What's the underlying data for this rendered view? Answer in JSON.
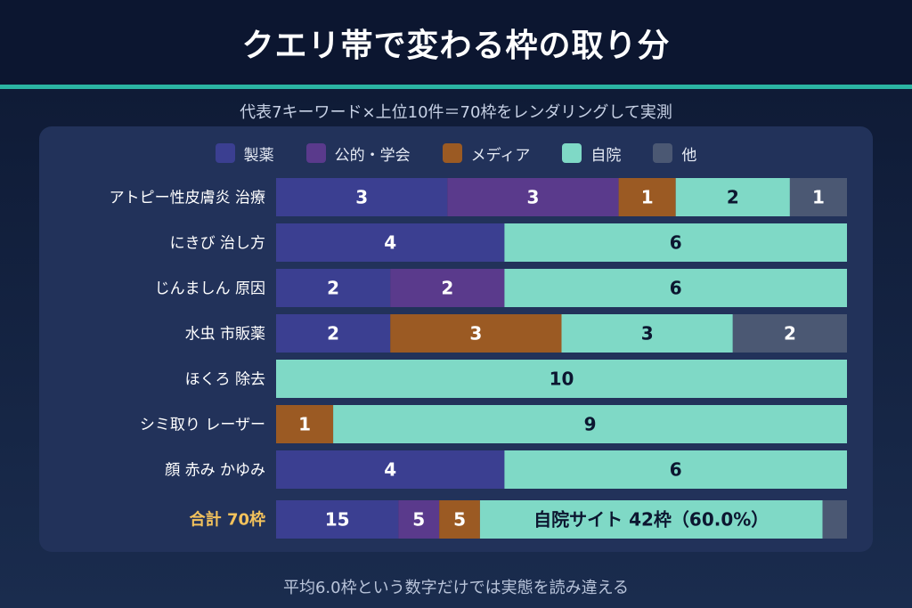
{
  "title": "クエリ帯で変わる枠の取り分",
  "subtitle": "代表7キーワード×上位10件＝70枠をレンダリングして実測",
  "footer": "平均6.0枠という数字だけでは実態を読み違える",
  "colors": {
    "seiyaku": "#3b3f91",
    "koteki": "#5a3a8c",
    "media": "#9b5a23",
    "jiin": "#7fd9c6",
    "other": "#4b5873"
  },
  "chart_data": {
    "type": "bar",
    "stacked": true,
    "orientation": "horizontal",
    "series": [
      {
        "name": "製薬",
        "key": "seiyaku",
        "values": [
          3,
          4,
          2,
          2,
          0,
          0,
          4
        ]
      },
      {
        "name": "公的・学会",
        "key": "koteki",
        "values": [
          3,
          0,
          2,
          0,
          0,
          0,
          0
        ]
      },
      {
        "name": "メディア",
        "key": "media",
        "values": [
          1,
          0,
          0,
          3,
          0,
          1,
          0
        ]
      },
      {
        "name": "自院",
        "key": "jiin",
        "values": [
          2,
          6,
          6,
          3,
          10,
          9,
          6
        ]
      },
      {
        "name": "他",
        "key": "other",
        "values": [
          1,
          0,
          0,
          2,
          0,
          0,
          0
        ]
      }
    ],
    "categories": [
      "アトピー性皮膚炎 治療",
      "にきび 治し方",
      "じんましん 原因",
      "水虫 市販薬",
      "ほくろ 除去",
      "シミ取り レーザー",
      "顔 赤み かゆみ"
    ],
    "xlim": [
      0,
      10
    ],
    "total": {
      "label": "合計 70枠",
      "values": [
        15,
        5,
        5,
        42,
        3
      ],
      "segment_labels": [
        "15",
        "5",
        "5",
        "自院サイト 42枠（60.0%）",
        ""
      ]
    }
  }
}
